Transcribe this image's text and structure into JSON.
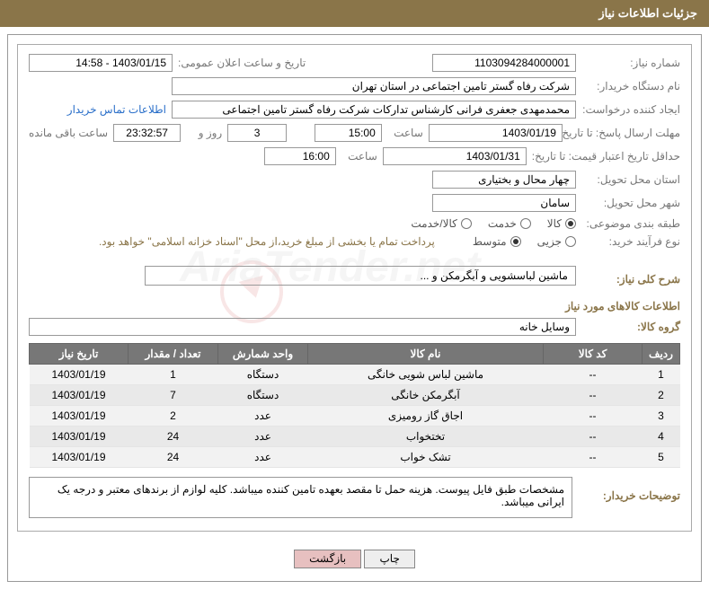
{
  "header_title": "جزئیات اطلاعات نیاز",
  "labels": {
    "need_no": "شماره نیاز:",
    "announce_dt": "تاریخ و ساعت اعلان عمومی:",
    "buyer_org": "نام دستگاه خریدار:",
    "requester": "ایجاد کننده درخواست:",
    "contact_link": "اطلاعات تماس خریدار",
    "reply_deadline": "مهلت ارسال پاسخ: تا تاریخ:",
    "hour": "ساعت",
    "days_and": "روز و",
    "time_left": "ساعت باقی مانده",
    "price_validity": "حداقل تاریخ اعتبار قیمت: تا تاریخ:",
    "delivery_province": "استان محل تحویل:",
    "delivery_city": "شهر محل تحویل:",
    "subject_cat": "طبقه بندی موضوعی:",
    "purchase_type": "نوع فرآیند خرید:",
    "payment_note": "پرداخت تمام یا بخشی از مبلغ خرید،از محل \"اسناد خزانه اسلامی\" خواهد بود.",
    "summary": "شرح کلی نیاز:",
    "goods_info": "اطلاعات کالاهای مورد نیاز",
    "goods_group": "گروه کالا:",
    "buyer_notes": "توضیحات خریدار:"
  },
  "fields": {
    "need_no": "1103094284000001",
    "announce_dt": "1403/01/15 - 14:58",
    "buyer_org": "شرکت رفاه گستر تامین اجتماعی در استان تهران",
    "requester": "محمدمهدی جعفری فرانی کارشناس تدارکات شرکت رفاه گستر تامین اجتماعی",
    "reply_date": "1403/01/19",
    "reply_time": "15:00",
    "days_left": "3",
    "countdown": "23:32:57",
    "price_date": "1403/01/31",
    "price_time": "16:00",
    "province": "چهار محال و بختیاری",
    "city": "سامان",
    "summary": "ماشین لباسشویی و آبگرمکن و ...",
    "goods_group": "وسایل خانه",
    "buyer_notes": "مشخصات طبق فایل پیوست. هزینه حمل تا مقصد بعهده تامین کننده میباشد. کلیه لوازم از برندهای معتبر و درجه یک ایرانی میباشد."
  },
  "radios": {
    "subject": [
      {
        "label": "کالا",
        "checked": true
      },
      {
        "label": "خدمت",
        "checked": false
      },
      {
        "label": "کالا/خدمت",
        "checked": false
      }
    ],
    "purchase": [
      {
        "label": "جزیی",
        "checked": false
      },
      {
        "label": "متوسط",
        "checked": true
      }
    ]
  },
  "table": {
    "headers": [
      "ردیف",
      "کد کالا",
      "نام کالا",
      "واحد شمارش",
      "تعداد / مقدار",
      "تاریخ نیاز"
    ],
    "rows": [
      {
        "idx": "1",
        "code": "--",
        "name": "ماشین لباس شویی خانگی",
        "unit": "دستگاه",
        "qty": "1",
        "date": "1403/01/19"
      },
      {
        "idx": "2",
        "code": "--",
        "name": "آبگرمکن خانگی",
        "unit": "دستگاه",
        "qty": "7",
        "date": "1403/01/19"
      },
      {
        "idx": "3",
        "code": "--",
        "name": "اجاق گاز رومیزی",
        "unit": "عدد",
        "qty": "2",
        "date": "1403/01/19"
      },
      {
        "idx": "4",
        "code": "--",
        "name": "تختخواب",
        "unit": "عدد",
        "qty": "24",
        "date": "1403/01/19"
      },
      {
        "idx": "5",
        "code": "--",
        "name": "تشک خواب",
        "unit": "عدد",
        "qty": "24",
        "date": "1403/01/19"
      }
    ]
  },
  "buttons": {
    "print": "چاپ",
    "back": "بازگشت"
  },
  "watermark": "AriaTender.net",
  "colors": {
    "header_bg": "#8a7549",
    "th_bg": "#777777",
    "link": "#2a6fc9"
  }
}
